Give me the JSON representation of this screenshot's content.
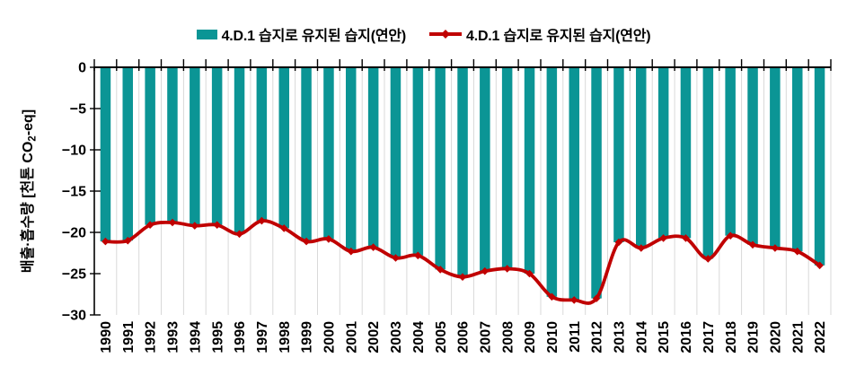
{
  "chart_data": {
    "type": "bar+line",
    "title": "",
    "categories": [
      "1990",
      "1991",
      "1992",
      "1993",
      "1994",
      "1995",
      "1996",
      "1997",
      "1998",
      "1999",
      "2000",
      "2001",
      "2002",
      "2003",
      "2004",
      "2005",
      "2006",
      "2007",
      "2008",
      "2009",
      "2010",
      "2011",
      "2012",
      "2013",
      "2014",
      "2015",
      "2016",
      "2017",
      "2018",
      "2019",
      "2020",
      "2021",
      "2022"
    ],
    "series": [
      {
        "name": "4.D.1 습지로 유지된 습지(연안)",
        "type": "bar",
        "color": "#0B9595",
        "values": [
          -21.1,
          -21.0,
          -19.1,
          -18.8,
          -19.2,
          -19.1,
          -20.2,
          -18.6,
          -19.5,
          -21.1,
          -20.8,
          -22.3,
          -21.8,
          -23.1,
          -22.8,
          -24.5,
          -25.4,
          -24.7,
          -24.4,
          -25.0,
          -27.8,
          -28.2,
          -28.0,
          -21.2,
          -21.9,
          -20.7,
          -20.7,
          -23.2,
          -20.4,
          -21.5,
          -21.9,
          -22.3,
          -24.0
        ]
      },
      {
        "name": "4.D.1 습지로 유지된 습지(연안)",
        "type": "line",
        "marker": "diamond",
        "color": "#C00000",
        "values": [
          -21.1,
          -21.0,
          -19.1,
          -18.8,
          -19.2,
          -19.1,
          -20.2,
          -18.6,
          -19.5,
          -21.1,
          -20.8,
          -22.3,
          -21.8,
          -23.1,
          -22.8,
          -24.5,
          -25.4,
          -24.7,
          -24.4,
          -25.0,
          -27.8,
          -28.2,
          -28.0,
          -21.2,
          -21.9,
          -20.7,
          -20.7,
          -23.2,
          -20.4,
          -21.5,
          -21.9,
          -22.3,
          -24.0
        ]
      }
    ],
    "xlabel": "",
    "ylabel": "배출·흡수량 [천톤 CO₂-eq]",
    "ylabel_parts": {
      "pre": "배출·흡수량 [천톤 CO",
      "sub": "2",
      "post": "-eq]"
    },
    "ylim": [
      -30,
      0
    ],
    "yticks": [
      0,
      -5,
      -10,
      -15,
      -20,
      -25,
      -30
    ],
    "grid": {
      "vertical": true,
      "horizontal": false,
      "color": "#D9D9D9"
    },
    "axis_color": "#000000",
    "legend_position": "top-center"
  }
}
